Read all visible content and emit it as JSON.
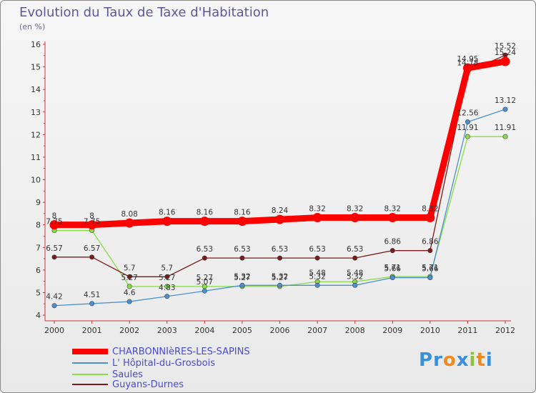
{
  "chart_data": {
    "type": "line",
    "title": "Evolution du Taux de Taxe d'Habitation",
    "unit_label": "(en %)",
    "xlabel": "",
    "ylabel": "",
    "ylim": [
      4,
      16
    ],
    "yticks": [
      4,
      5,
      6,
      7,
      8,
      9,
      10,
      11,
      12,
      13,
      14,
      15,
      16
    ],
    "grid": false,
    "categories": [
      "2000",
      "2001",
      "2002",
      "2003",
      "2004",
      "2005",
      "2006",
      "2007",
      "2008",
      "2009",
      "2010",
      "2011",
      "2012"
    ],
    "series": [
      {
        "name": "CHARBONNIèRES-LES-SAPINS",
        "color": "#ff0000",
        "values": [
          8,
          8,
          8.08,
          8.16,
          8.16,
          8.16,
          8.24,
          8.32,
          8.32,
          8.32,
          8.32,
          14.95,
          15.24
        ],
        "labels": [
          "8",
          "8",
          "8.08",
          "8.16",
          "8.16",
          "8.16",
          "8.24",
          "8.32",
          "8.32",
          "8.32",
          "8.32",
          "14.95",
          "15.24"
        ]
      },
      {
        "name": "L' Hôpital-du-Grosbois",
        "color": "#4a90d0",
        "values": [
          4.42,
          4.51,
          4.6,
          4.83,
          5.07,
          5.32,
          5.32,
          5.32,
          5.32,
          5.66,
          5.66,
          12.56,
          13.12
        ],
        "labels": [
          "4.42",
          "4.51",
          "4.6",
          "4.83",
          "5.07",
          "5.32",
          "5.32",
          "5.32",
          "5.32",
          "5.66",
          "5.66",
          "12.56",
          "13.12"
        ]
      },
      {
        "name": "Saules",
        "color": "#88dd44",
        "values": [
          7.75,
          7.75,
          5.27,
          5.27,
          5.27,
          5.27,
          5.27,
          5.48,
          5.48,
          5.71,
          5.71,
          11.91,
          11.91
        ],
        "labels": [
          "7.75",
          "7.75",
          "5.27",
          "5.27",
          "5.27",
          "5.27",
          "5.27",
          "5.48",
          "5.48",
          "5.71",
          "5.71",
          "11.91",
          "11.91"
        ]
      },
      {
        "name": "Guyans-Durnes",
        "color": "#7a1a1a",
        "values": [
          6.57,
          6.57,
          5.7,
          5.7,
          6.53,
          6.53,
          6.53,
          6.53,
          6.53,
          6.86,
          6.86,
          14.78,
          15.52
        ],
        "labels": [
          "6.57",
          "6.57",
          "5.7",
          "5.7",
          "6.53",
          "6.53",
          "6.53",
          "6.53",
          "6.53",
          "6.86",
          "6.86",
          "14.78",
          "15.52"
        ]
      }
    ]
  },
  "branding": {
    "logo_letters": [
      "P",
      "r",
      "o",
      "x",
      "i",
      "t",
      "i"
    ],
    "logo_colors": [
      "#3a8fd8",
      "#3a8fd8",
      "#f08a1c",
      "#3a8fd8",
      "#8ac43c",
      "#f08a1c",
      "#3a8fd8"
    ]
  }
}
